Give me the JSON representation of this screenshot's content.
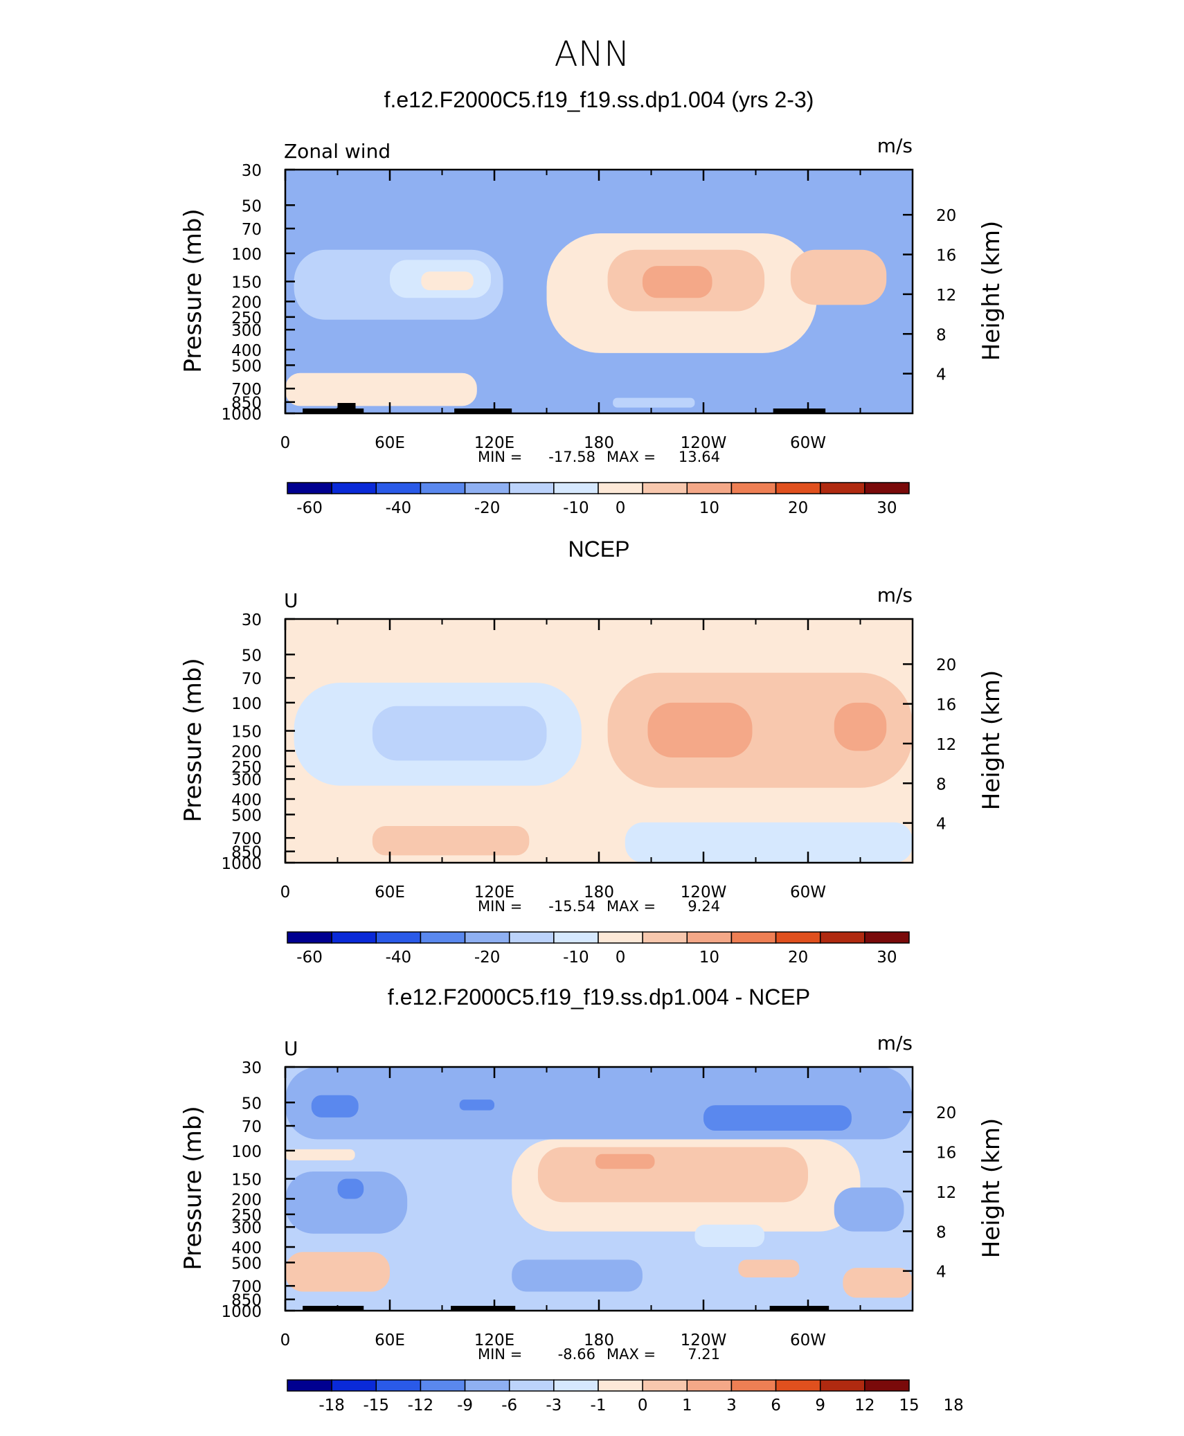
{
  "page": {
    "title": "ANN"
  },
  "colors": {
    "scale": [
      "#000090",
      "#0a2ad8",
      "#2a5ae8",
      "#5a88ee",
      "#8fb0f2",
      "#bcd3fb",
      "#d6e8fe",
      "#fde9d8",
      "#f8c8ae",
      "#f4a888",
      "#ee7f54",
      "#e0501e",
      "#b02a10",
      "#7a0a0a"
    ]
  },
  "chart_data": [
    {
      "type": "heatmap",
      "plot_id": "model",
      "title": "f.e12.F2000C5.f19_f19.ss.dp1.004 (yrs 2-3)",
      "left_label": "Zonal wind",
      "units": "m/s",
      "ylabel": "Pressure (mb)",
      "y2label": "Height (km)",
      "yticks": [
        "30",
        "50",
        "70",
        "100",
        "150",
        "200",
        "250",
        "300",
        "400",
        "500",
        "700",
        "850",
        "1000"
      ],
      "y2ticks": [
        "20",
        "16",
        "12",
        "8",
        "4"
      ],
      "xticks": [
        "0",
        "60E",
        "120E",
        "180",
        "120W",
        "60W"
      ],
      "min_label": "MIN =",
      "min": "-17.58",
      "max_label": "MAX =",
      "max": "13.64",
      "colorbar_labels": [
        "-60",
        "-40",
        "-20",
        "-10",
        "0",
        "10",
        "20",
        "30"
      ],
      "regions": [
        {
          "level": 4,
          "x": [
            0,
            360
          ],
          "p": [
            30,
            1000
          ]
        },
        {
          "level": 5,
          "x": [
            5,
            125
          ],
          "p": [
            95,
            260
          ]
        },
        {
          "level": 6,
          "x": [
            60,
            118
          ],
          "p": [
            110,
            190
          ]
        },
        {
          "level": 7,
          "x": [
            78,
            108
          ],
          "p": [
            130,
            170
          ]
        },
        {
          "level": 7,
          "x": [
            0,
            110
          ],
          "p": [
            560,
            900
          ]
        },
        {
          "level": 7,
          "x": [
            150,
            305
          ],
          "p": [
            75,
            420
          ]
        },
        {
          "level": 8,
          "x": [
            185,
            275
          ],
          "p": [
            95,
            230
          ]
        },
        {
          "level": 9,
          "x": [
            205,
            245
          ],
          "p": [
            120,
            190
          ]
        },
        {
          "level": 8,
          "x": [
            290,
            345
          ],
          "p": [
            95,
            210
          ]
        },
        {
          "level": 5,
          "x": [
            188,
            235
          ],
          "p": [
            800,
            920
          ]
        }
      ]
    },
    {
      "type": "heatmap",
      "plot_id": "obs",
      "title": "NCEP",
      "left_label": "U",
      "units": "m/s",
      "ylabel": "Pressure (mb)",
      "y2label": "Height (km)",
      "yticks": [
        "30",
        "50",
        "70",
        "100",
        "150",
        "200",
        "250",
        "300",
        "400",
        "500",
        "700",
        "850",
        "1000"
      ],
      "y2ticks": [
        "20",
        "16",
        "12",
        "8",
        "4"
      ],
      "xticks": [
        "0",
        "60E",
        "120E",
        "180",
        "120W",
        "60W"
      ],
      "min_label": "MIN =",
      "min": "-15.54",
      "max_label": "MAX =",
      "max": "9.24",
      "colorbar_labels": [
        "-60",
        "-40",
        "-20",
        "-10",
        "0",
        "10",
        "20",
        "30"
      ],
      "regions": [
        {
          "level": 7,
          "x": [
            0,
            360
          ],
          "p": [
            30,
            1000
          ]
        },
        {
          "level": 6,
          "x": [
            5,
            170
          ],
          "p": [
            75,
            330
          ]
        },
        {
          "level": 5,
          "x": [
            50,
            150
          ],
          "p": [
            105,
            230
          ]
        },
        {
          "level": 6,
          "x": [
            195,
            360
          ],
          "p": [
            560,
            1000
          ]
        },
        {
          "level": 8,
          "x": [
            185,
            360
          ],
          "p": [
            65,
            340
          ]
        },
        {
          "level": 9,
          "x": [
            208,
            268
          ],
          "p": [
            100,
            220
          ]
        },
        {
          "level": 9,
          "x": [
            315,
            345
          ],
          "p": [
            100,
            200
          ]
        },
        {
          "level": 8,
          "x": [
            50,
            140
          ],
          "p": [
            590,
            900
          ]
        }
      ]
    },
    {
      "type": "heatmap",
      "plot_id": "diff",
      "title": "f.e12.F2000C5.f19_f19.ss.dp1.004 - NCEP",
      "left_label": "U",
      "units": "m/s",
      "ylabel": "Pressure (mb)",
      "y2label": "Height (km)",
      "yticks": [
        "30",
        "50",
        "70",
        "100",
        "150",
        "200",
        "250",
        "300",
        "400",
        "500",
        "700",
        "850",
        "1000"
      ],
      "y2ticks": [
        "20",
        "16",
        "12",
        "8",
        "4"
      ],
      "xticks": [
        "0",
        "60E",
        "120E",
        "180",
        "120W",
        "60W"
      ],
      "min_label": "MIN =",
      "min": "-8.66",
      "max_label": "MAX =",
      "max": "7.21",
      "colorbar_labels": [
        "-18",
        "-15",
        "-12",
        "-9",
        "-6",
        "-3",
        "-1",
        "0",
        "1",
        "3",
        "6",
        "9",
        "12",
        "15",
        "18"
      ],
      "regions": [
        {
          "level": 5,
          "x": [
            0,
            360
          ],
          "p": [
            30,
            1000
          ]
        },
        {
          "level": 4,
          "x": [
            0,
            360
          ],
          "p": [
            30,
            85
          ]
        },
        {
          "level": 3,
          "x": [
            15,
            42
          ],
          "p": [
            45,
            62
          ]
        },
        {
          "level": 3,
          "x": [
            240,
            325
          ],
          "p": [
            52,
            75
          ]
        },
        {
          "level": 3,
          "x": [
            100,
            120
          ],
          "p": [
            48,
            56
          ]
        },
        {
          "level": 7,
          "x": [
            130,
            330
          ],
          "p": [
            85,
            320
          ]
        },
        {
          "level": 8,
          "x": [
            145,
            300
          ],
          "p": [
            95,
            210
          ]
        },
        {
          "level": 9,
          "x": [
            178,
            212
          ],
          "p": [
            105,
            130
          ]
        },
        {
          "level": 4,
          "x": [
            0,
            70
          ],
          "p": [
            135,
            330
          ]
        },
        {
          "level": 3,
          "x": [
            30,
            45
          ],
          "p": [
            150,
            200
          ]
        },
        {
          "level": 8,
          "x": [
            0,
            60
          ],
          "p": [
            430,
            760
          ]
        },
        {
          "level": 4,
          "x": [
            130,
            205
          ],
          "p": [
            480,
            760
          ]
        },
        {
          "level": 6,
          "x": [
            235,
            275
          ],
          "p": [
            290,
            400
          ]
        },
        {
          "level": 8,
          "x": [
            260,
            295
          ],
          "p": [
            480,
            620
          ]
        },
        {
          "level": 4,
          "x": [
            315,
            355
          ],
          "p": [
            170,
            320
          ]
        },
        {
          "level": 8,
          "x": [
            320,
            360
          ],
          "p": [
            540,
            830
          ]
        },
        {
          "level": 7,
          "x": [
            0,
            40
          ],
          "p": [
            98,
            115
          ]
        }
      ],
      "land": [
        [
          10,
          45
        ],
        [
          95,
          132
        ],
        [
          278,
          312
        ]
      ]
    }
  ]
}
